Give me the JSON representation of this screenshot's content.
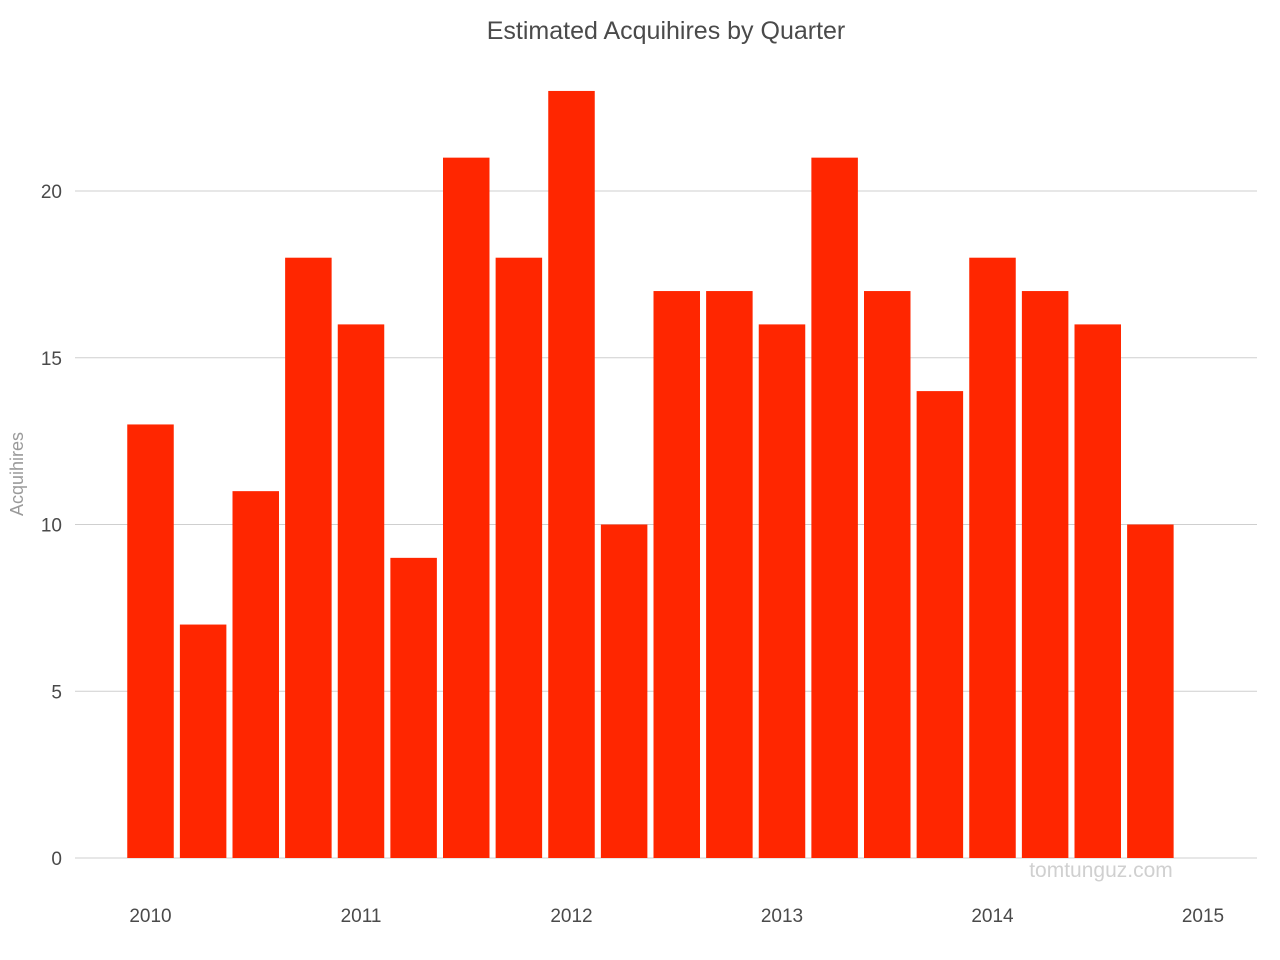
{
  "chart_data": {
    "type": "bar",
    "title": "Estimated Acquihires by Quarter",
    "ylabel": "Acquihires",
    "xlabel": "",
    "ylim": [
      0,
      24
    ],
    "yticks": [
      0,
      5,
      10,
      15,
      20
    ],
    "xticks": [
      "2010",
      "2011",
      "2012",
      "2013",
      "2014",
      "2015"
    ],
    "xlim": [
      2009.85,
      2015.15
    ],
    "grid": true,
    "color": "#ff2600",
    "categories": [
      "2010 Q1",
      "2010 Q2",
      "2010 Q3",
      "2010 Q4",
      "2011 Q1",
      "2011 Q2",
      "2011 Q3",
      "2011 Q4",
      "2012 Q1",
      "2012 Q2",
      "2012 Q3",
      "2012 Q4",
      "2013 Q1",
      "2013 Q2",
      "2013 Q3",
      "2013 Q4",
      "2014 Q1",
      "2014 Q2",
      "2014 Q3",
      "2014 Q4"
    ],
    "x": [
      2010.0,
      2010.25,
      2010.5,
      2010.75,
      2011.0,
      2011.25,
      2011.5,
      2011.75,
      2012.0,
      2012.25,
      2012.5,
      2012.75,
      2013.0,
      2013.25,
      2013.5,
      2013.75,
      2014.0,
      2014.25,
      2014.5,
      2014.75
    ],
    "values": [
      13,
      7,
      11,
      18,
      16,
      9,
      21,
      18,
      23,
      10,
      17,
      17,
      16,
      21,
      17,
      14,
      18,
      17,
      16,
      10
    ]
  },
  "watermark": "tomtunguz.com"
}
